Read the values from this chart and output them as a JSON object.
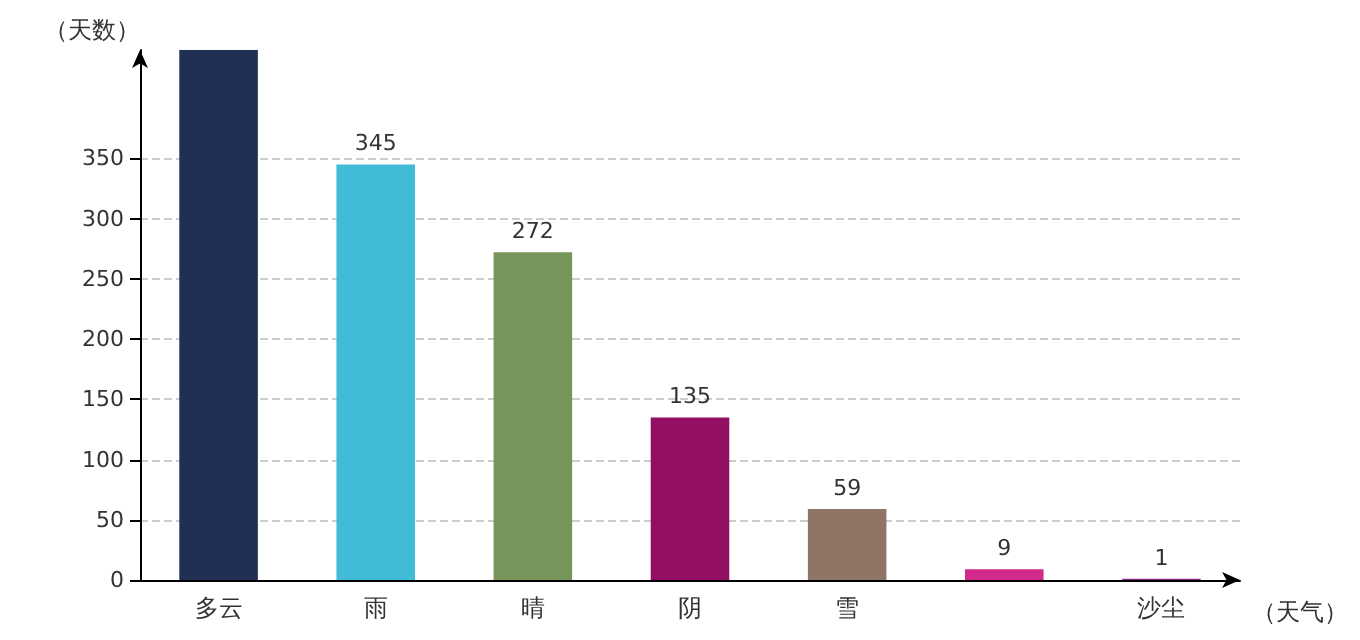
{
  "chart_data": {
    "type": "bar",
    "xlabel": "（天气）",
    "ylabel": "（天数）",
    "categories": [
      "多云",
      "雨",
      "晴",
      "阴",
      "雪",
      null,
      "沙尘"
    ],
    "values": [
      440,
      345,
      272,
      135,
      59,
      9,
      1
    ],
    "value_labels": [
      null,
      "345",
      "272",
      "135",
      "59",
      "9",
      "1"
    ],
    "colors": [
      "#222f55",
      "#42bbd6",
      "#77955a",
      "#930f63",
      "#8f7565",
      "#d12a8c",
      "#8a2b8a"
    ],
    "ylim": [
      0,
      440
    ],
    "yticks": [
      0,
      50,
      100,
      150,
      200,
      250,
      300,
      350
    ],
    "grid": "y"
  }
}
